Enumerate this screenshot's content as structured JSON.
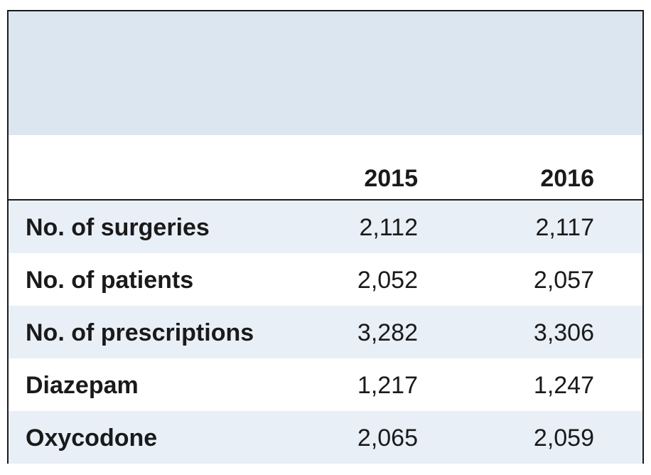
{
  "table": {
    "columns": [
      "2015",
      "2016"
    ],
    "rows": [
      {
        "label": "No. of surgeries",
        "values": [
          "2,112",
          "2,117"
        ]
      },
      {
        "label": "No. of patients",
        "values": [
          "2,052",
          "2,057"
        ]
      },
      {
        "label": "No. of prescriptions",
        "values": [
          "3,282",
          "3,306"
        ]
      },
      {
        "label": "Diazepam",
        "values": [
          "1,217",
          "1,247"
        ]
      },
      {
        "label": "Oxycodone",
        "values": [
          "2,065",
          "2,059"
        ]
      }
    ]
  },
  "colors": {
    "title_band": "#dce6f1",
    "shaded_row": "#e9eff7",
    "border": "#1a1a1a",
    "text": "#1a1a1a"
  }
}
